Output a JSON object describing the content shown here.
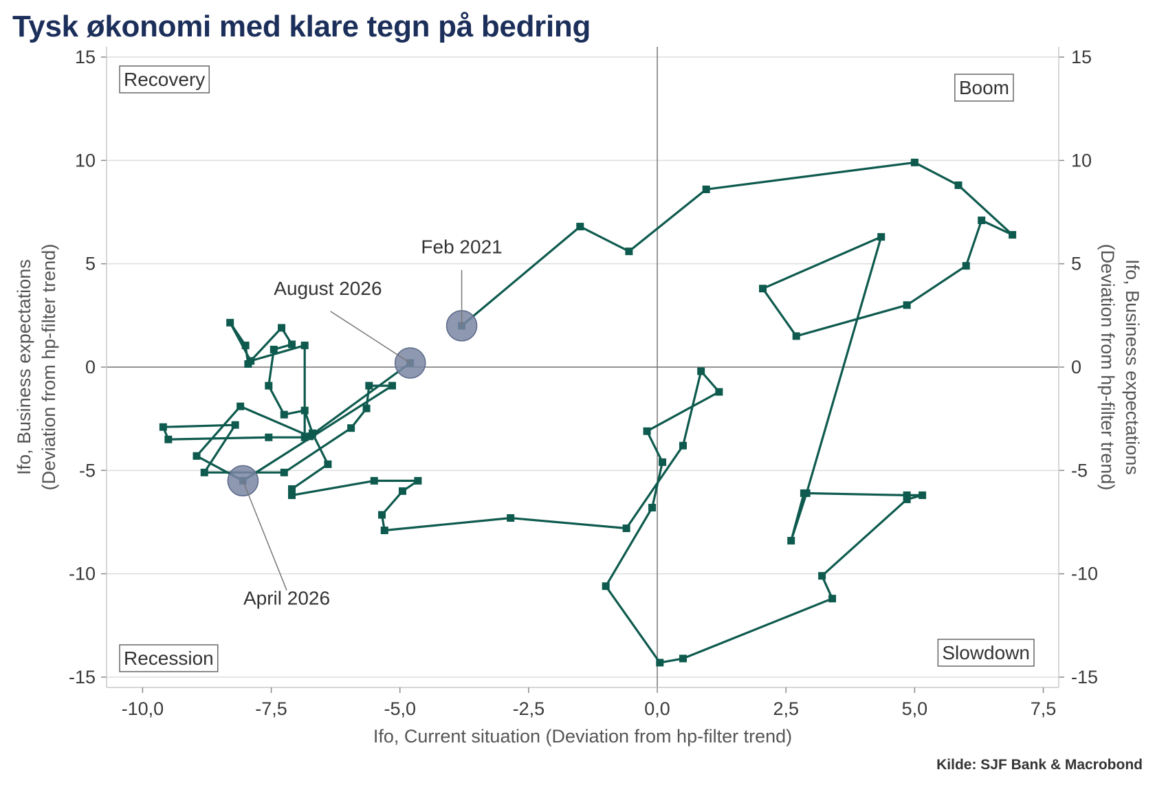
{
  "title": "Tysk økonomi med klare tegn på bedring",
  "source": "Kilde: SJF Bank & Macrobond",
  "chart_data": {
    "type": "scatter",
    "title": "Tysk økonomi med klare tegn på bedring",
    "xlabel": "Ifo, Current situation (Deviation from hp-filter trend)",
    "ylabel_left": [
      "Ifo, Business expectations",
      "(Deviation from hp-filter trend)"
    ],
    "ylabel_right": [
      "Ifo, Business expectations",
      "(Deviation from hp-filter trend)"
    ],
    "xlim": [
      -10.7,
      7.8
    ],
    "ylim": [
      -15.5,
      15.5
    ],
    "x_ticks": [
      -10,
      -7.5,
      -5,
      -2.5,
      0,
      2.5,
      5,
      7.5
    ],
    "x_tick_labels": [
      "-10,0",
      "-7,5",
      "-5,0",
      "-2,5",
      "0,0",
      "2,5",
      "5,0",
      "7,5"
    ],
    "y_ticks": [
      -15,
      -10,
      -5,
      0,
      5,
      10,
      15
    ],
    "y_tick_labels": [
      "-15",
      "-10",
      "-5",
      "0",
      "5",
      "10",
      "15"
    ],
    "grid": "horizontal",
    "reference_lines": {
      "x": 0,
      "y": 0
    },
    "colors": {
      "series": "#0e5a4e",
      "highlight": "#7a86a3",
      "grid": "#dddddd",
      "reference": "#777777"
    },
    "quadrant_labels": {
      "top_left": "Recovery",
      "top_right": "Boom",
      "bottom_left": "Recession",
      "bottom_right": "Slowdown"
    },
    "series": [
      {
        "points": [
          [
            -3.8,
            2.0
          ],
          [
            -1.5,
            6.8
          ],
          [
            -0.55,
            5.6
          ],
          [
            0.95,
            8.6
          ],
          [
            5.0,
            9.9
          ],
          [
            5.85,
            8.8
          ],
          [
            6.9,
            6.4
          ],
          [
            6.3,
            7.1
          ],
          [
            6.0,
            4.9
          ],
          [
            4.85,
            3.0
          ],
          [
            2.7,
            1.5
          ],
          [
            2.05,
            3.8
          ],
          [
            4.35,
            6.3
          ],
          [
            2.9,
            -6.1
          ],
          [
            2.6,
            -8.4
          ],
          [
            2.85,
            -6.1
          ],
          [
            4.85,
            -6.2
          ],
          [
            5.15,
            -6.2
          ],
          [
            4.85,
            -6.4
          ],
          [
            3.2,
            -10.1
          ],
          [
            3.4,
            -11.2
          ],
          [
            0.5,
            -14.1
          ],
          [
            0.05,
            -14.3
          ],
          [
            -1.0,
            -10.6
          ],
          [
            -0.1,
            -6.8
          ],
          [
            0.1,
            -4.6
          ],
          [
            -0.2,
            -3.1
          ],
          [
            1.2,
            -1.2
          ],
          [
            0.85,
            -0.2
          ],
          [
            0.5,
            -3.8
          ],
          [
            -0.6,
            -7.8
          ],
          [
            -2.85,
            -7.3
          ],
          [
            -5.3,
            -7.9
          ],
          [
            -5.35,
            -7.15
          ],
          [
            -4.95,
            -6.0
          ],
          [
            -4.65,
            -5.5
          ],
          [
            -5.5,
            -5.5
          ],
          [
            -7.1,
            -6.2
          ],
          [
            -7.1,
            -5.9
          ],
          [
            -6.4,
            -4.7
          ],
          [
            -6.7,
            -3.2
          ],
          [
            -6.85,
            -2.1
          ],
          [
            -7.25,
            -2.3
          ],
          [
            -7.55,
            -0.9
          ],
          [
            -7.45,
            0.85
          ],
          [
            -7.1,
            1.1
          ],
          [
            -7.3,
            1.9
          ],
          [
            -7.9,
            0.3
          ],
          [
            -7.95,
            0.15
          ],
          [
            -8.0,
            1.05
          ],
          [
            -8.3,
            2.15
          ],
          [
            -7.9,
            0.3
          ],
          [
            -6.85,
            1.05
          ],
          [
            -6.85,
            -3.4
          ],
          [
            -7.55,
            -3.4
          ],
          [
            -9.5,
            -3.5
          ],
          [
            -9.6,
            -2.9
          ],
          [
            -8.2,
            -2.8
          ],
          [
            -8.8,
            -5.1
          ],
          [
            -7.25,
            -5.1
          ],
          [
            -5.95,
            -2.95
          ],
          [
            -5.65,
            -2.0
          ],
          [
            -5.6,
            -0.9
          ],
          [
            -5.15,
            -0.9
          ],
          [
            -8.05,
            -5.5
          ],
          [
            -8.95,
            -4.3
          ],
          [
            -8.1,
            -1.9
          ],
          [
            -6.75,
            -3.35
          ],
          [
            -4.8,
            0.2
          ]
        ]
      }
    ],
    "highlights": [
      {
        "label": "Feb 2021",
        "x": -3.8,
        "y": 2.0
      },
      {
        "label": "August 2026",
        "x": -4.8,
        "y": 0.2
      },
      {
        "label": "April 2026",
        "x": -8.05,
        "y": -5.5
      }
    ]
  }
}
